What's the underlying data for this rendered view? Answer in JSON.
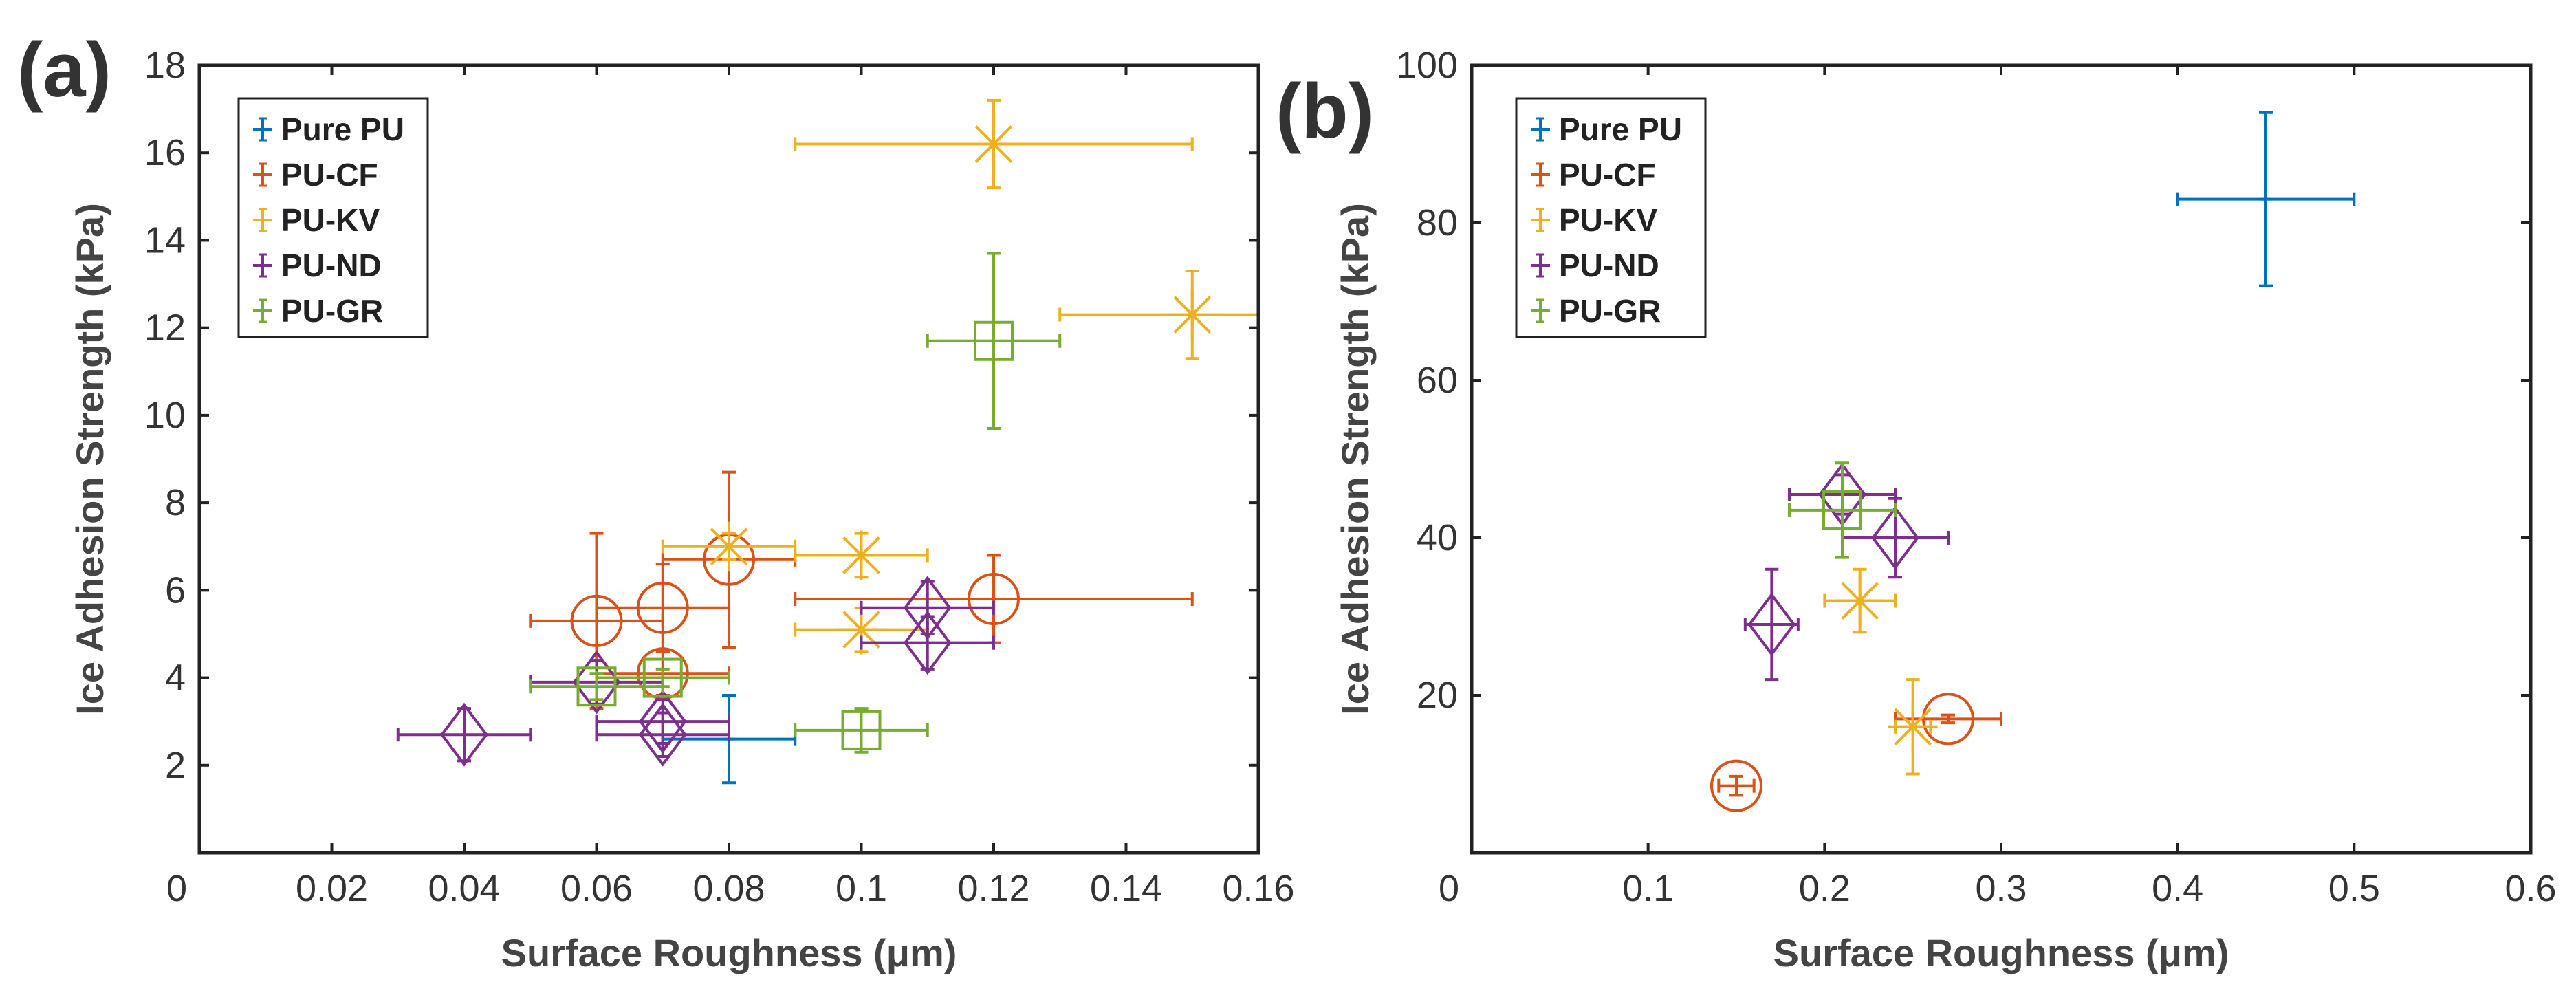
{
  "chart_data": [
    {
      "type": "scatter",
      "panel_label": "(a)",
      "title": "",
      "xlabel": "Surface Roughness (μm)",
      "ylabel": "Ice Adhesion Strength (kPa)",
      "xlim": [
        0,
        0.16
      ],
      "ylim": [
        0,
        18
      ],
      "x_ticks": [
        0,
        0.02,
        0.04,
        0.06,
        0.08,
        0.1,
        0.12,
        0.14,
        0.16
      ],
      "x_tick_labels": [
        "0",
        "0.02",
        "0.04",
        "0.06",
        "0.08",
        "0.1",
        "0.12",
        "0.14",
        "0.16"
      ],
      "y_ticks": [
        2,
        4,
        6,
        8,
        10,
        12,
        14,
        16,
        18
      ],
      "y_tick_labels": [
        "2",
        "4",
        "6",
        "8",
        "10",
        "12",
        "14",
        "16",
        "18"
      ],
      "grid": false,
      "legend_position": "top-left",
      "series": [
        {
          "name": "Pure PU",
          "color": "#0072BD",
          "marker": "plus",
          "points": [
            {
              "x": 0.08,
              "y": 2.6,
              "xerr": 0.01,
              "yerr": 1.0
            }
          ]
        },
        {
          "name": "PU-CF",
          "color": "#D95319",
          "marker": "circle",
          "points": [
            {
              "x": 0.06,
              "y": 5.3,
              "xerr": 0.01,
              "yerr": 2.0
            },
            {
              "x": 0.07,
              "y": 5.6,
              "xerr": 0.01,
              "yerr": 1.0
            },
            {
              "x": 0.07,
              "y": 4.1,
              "xerr": 0.01,
              "yerr": 0.5
            },
            {
              "x": 0.08,
              "y": 6.7,
              "xerr": 0.01,
              "yerr": 2.0
            },
            {
              "x": 0.12,
              "y": 5.8,
              "xerr": 0.03,
              "yerr": 1.0
            }
          ]
        },
        {
          "name": "PU-KV",
          "color": "#EDB120",
          "marker": "asterisk",
          "points": [
            {
              "x": 0.12,
              "y": 16.2,
              "xerr": 0.03,
              "yerr": 1.0
            },
            {
              "x": 0.15,
              "y": 12.3,
              "xerr": 0.02,
              "yerr": 1.0
            },
            {
              "x": 0.08,
              "y": 7.0,
              "xerr": 0.01,
              "yerr": 0.3
            },
            {
              "x": 0.1,
              "y": 6.8,
              "xerr": 0.01,
              "yerr": 0.5
            },
            {
              "x": 0.1,
              "y": 5.1,
              "xerr": 0.01,
              "yerr": 0.5
            }
          ]
        },
        {
          "name": "PU-ND",
          "color": "#7E2F8E",
          "marker": "diamond",
          "points": [
            {
              "x": 0.04,
              "y": 2.7,
              "xerr": 0.01,
              "yerr": 0.6
            },
            {
              "x": 0.06,
              "y": 3.9,
              "xerr": 0.01,
              "yerr": 0.5
            },
            {
              "x": 0.07,
              "y": 3.0,
              "xerr": 0.01,
              "yerr": 0.5
            },
            {
              "x": 0.07,
              "y": 2.7,
              "xerr": 0.01,
              "yerr": 0.5
            },
            {
              "x": 0.11,
              "y": 5.6,
              "xerr": 0.01,
              "yerr": 0.6
            },
            {
              "x": 0.11,
              "y": 4.8,
              "xerr": 0.01,
              "yerr": 0.6
            }
          ]
        },
        {
          "name": "PU-GR",
          "color": "#77AC30",
          "marker": "square",
          "points": [
            {
              "x": 0.12,
              "y": 11.7,
              "xerr": 0.01,
              "yerr": 2.0
            },
            {
              "x": 0.06,
              "y": 3.8,
              "xerr": 0.01,
              "yerr": 0.3
            },
            {
              "x": 0.07,
              "y": 4.0,
              "xerr": 0.01,
              "yerr": 0.2
            },
            {
              "x": 0.1,
              "y": 2.8,
              "xerr": 0.01,
              "yerr": 0.5
            }
          ]
        }
      ]
    },
    {
      "type": "scatter",
      "panel_label": "(b)",
      "title": "",
      "xlabel": "Surface Roughness (μm)",
      "ylabel": "Ice Adhesion Strength (kPa)",
      "xlim": [
        0,
        0.6
      ],
      "ylim": [
        0,
        100
      ],
      "x_ticks": [
        0,
        0.1,
        0.2,
        0.3,
        0.4,
        0.5,
        0.6
      ],
      "x_tick_labels": [
        "0",
        "0.1",
        "0.2",
        "0.3",
        "0.4",
        "0.5",
        "0.6"
      ],
      "y_ticks": [
        20,
        40,
        60,
        80,
        100
      ],
      "y_tick_labels": [
        "20",
        "40",
        "60",
        "80",
        "100"
      ],
      "grid": false,
      "legend_position": "top-left",
      "series": [
        {
          "name": "Pure PU",
          "color": "#0072BD",
          "marker": "plus",
          "points": [
            {
              "x": 0.45,
              "y": 83,
              "xerr": 0.05,
              "yerr": 11
            }
          ]
        },
        {
          "name": "PU-CF",
          "color": "#D95319",
          "marker": "circle",
          "points": [
            {
              "x": 0.15,
              "y": 8.5,
              "xerr": 0.01,
              "yerr": 1.2
            },
            {
              "x": 0.27,
              "y": 17,
              "xerr": 0.03,
              "yerr": 0.5
            }
          ]
        },
        {
          "name": "PU-KV",
          "color": "#EDB120",
          "marker": "asterisk",
          "points": [
            {
              "x": 0.22,
              "y": 32,
              "xerr": 0.02,
              "yerr": 4
            },
            {
              "x": 0.25,
              "y": 16,
              "xerr": 0.01,
              "yerr": 6
            }
          ]
        },
        {
          "name": "PU-ND",
          "color": "#7E2F8E",
          "marker": "diamond",
          "points": [
            {
              "x": 0.21,
              "y": 45.5,
              "xerr": 0.03,
              "yerr": 2.5
            },
            {
              "x": 0.24,
              "y": 40,
              "xerr": 0.03,
              "yerr": 5
            },
            {
              "x": 0.17,
              "y": 29,
              "xerr": 0.015,
              "yerr": 7
            }
          ]
        },
        {
          "name": "PU-GR",
          "color": "#77AC30",
          "marker": "square",
          "points": [
            {
              "x": 0.21,
              "y": 43.5,
              "xerr": 0.03,
              "yerr": 6
            }
          ]
        }
      ]
    }
  ]
}
